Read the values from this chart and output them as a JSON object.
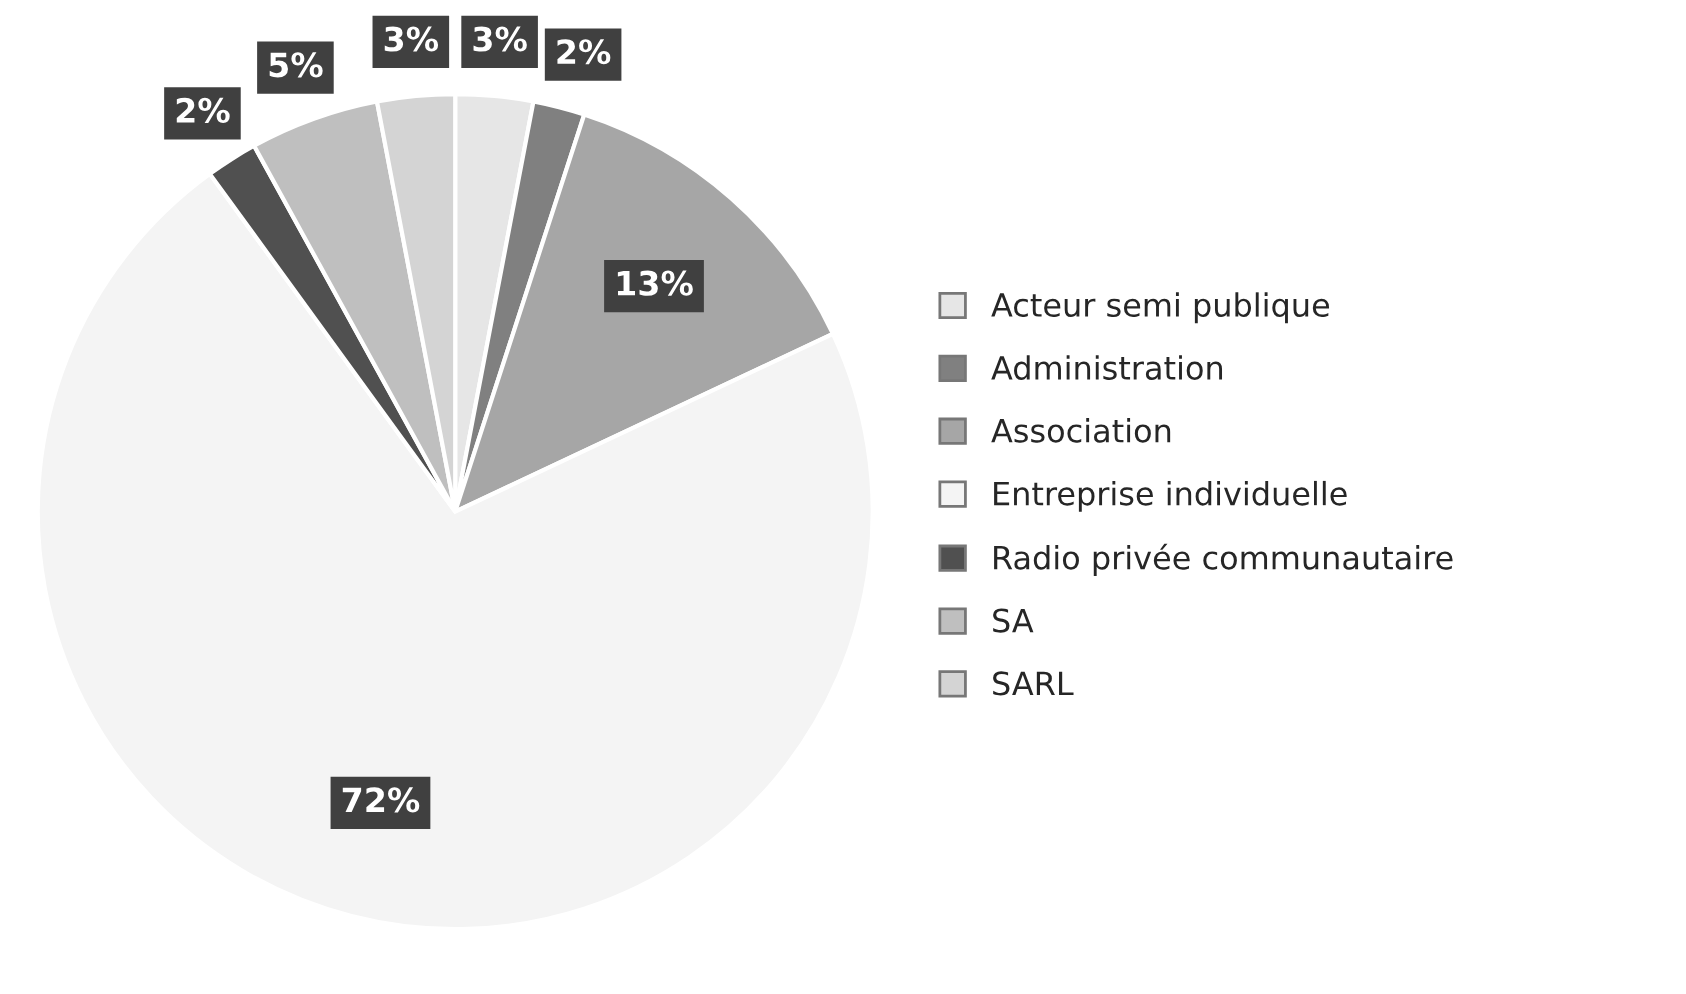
{
  "chart_data": {
    "type": "pie",
    "categories": [
      "Acteur semi publique",
      "Administration",
      "Association",
      "Entreprise individuelle",
      "Radio privée communautaire",
      "SA",
      "SARL"
    ],
    "values": [
      3,
      2,
      13,
      72,
      2,
      5,
      3
    ],
    "value_labels": [
      "3%",
      "2%",
      "13%",
      "72%",
      "2%",
      "5%",
      "3%"
    ],
    "colors": [
      "#e6e6e6",
      "#808080",
      "#a6a6a6",
      "#f4f4f4",
      "#505050",
      "#bfbfbf",
      "#d4d4d4"
    ],
    "legend": "right"
  }
}
